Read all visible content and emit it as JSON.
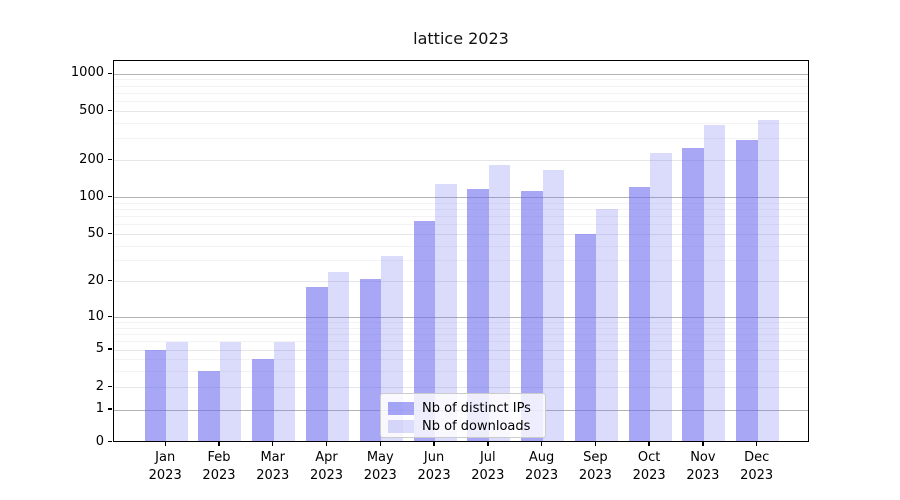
{
  "title": "lattice 2023",
  "chart_data": {
    "type": "bar",
    "title": "lattice 2023",
    "yscale": "symlog (log above 1, linear 0-1)",
    "grid": true,
    "categories": [
      "Jan",
      "Feb",
      "Mar",
      "Apr",
      "May",
      "Jun",
      "Jul",
      "Aug",
      "Sep",
      "Oct",
      "Nov",
      "Dec"
    ],
    "year": "2023",
    "yticks": [
      0,
      1,
      2,
      5,
      10,
      20,
      50,
      100,
      200,
      500,
      1000
    ],
    "ylim": [
      0,
      1150
    ],
    "legend_position": "lower center inside axes",
    "series": [
      {
        "name": "Nb of distinct IPs",
        "color": "#6868f0",
        "alpha": 0.58,
        "values": [
          5,
          3,
          4,
          18,
          21,
          64,
          117,
          114,
          51,
          122,
          255,
          295
        ]
      },
      {
        "name": "Nb of downloads",
        "color": "#6868f0",
        "alpha": 0.24,
        "values": [
          6,
          6,
          6,
          24,
          33,
          128,
          184,
          167,
          80,
          232,
          390,
          430
        ]
      }
    ]
  },
  "colors": {
    "major_grid": "#b3b3b3",
    "labeled_minor_grid": "#e6e6ea",
    "minor_grid": "#f4f2f4",
    "axis": "#000000",
    "legend_border": "#cccccc",
    "background": "#ffffff"
  }
}
